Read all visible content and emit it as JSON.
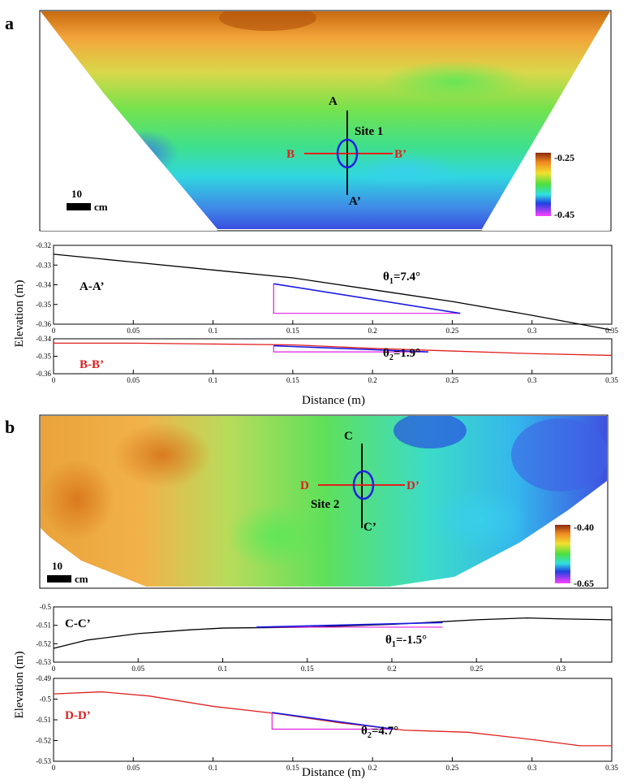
{
  "panel_a": {
    "label": "a",
    "map": {
      "scale_value": "10",
      "scale_unit": "cm",
      "colorbar_max": "-0.25",
      "colorbar_min": "-0.45",
      "site": "Site 1",
      "line1_start": "A",
      "line1_end": "A’",
      "line2_start": "B",
      "line2_end": "B’"
    },
    "profiles": [
      {
        "section": "A-A’",
        "section_color": "#000000",
        "angle_base": "θ",
        "angle_sub": "1",
        "angle_value": "=7.4°",
        "ylim": [
          -0.36,
          -0.32
        ],
        "yticks": [
          "-0.32",
          "-0.33",
          "-0.34",
          "-0.35",
          "-0.36"
        ],
        "xlim": [
          0,
          0.35
        ],
        "xticks": [
          "0",
          "0.05",
          "0.1",
          "0.15",
          "0.2",
          "0.25",
          "0.3",
          "0.35"
        ]
      },
      {
        "section": "B-B’",
        "section_color": "#e02020",
        "angle_base": "θ",
        "angle_sub": "2",
        "angle_value": "=1.9°",
        "ylim": [
          -0.36,
          -0.34
        ],
        "yticks": [
          "-0.34",
          "-0.35",
          "-0.36"
        ],
        "xlim": [
          0,
          0.35
        ],
        "xticks": [
          "0",
          "0.05",
          "0.1",
          "0.15",
          "0.2",
          "0.25",
          "0.3",
          "0.35"
        ]
      }
    ],
    "xlabel": "Distance (m)"
  },
  "panel_b": {
    "label": "b",
    "map": {
      "scale_value": "10",
      "scale_unit": "cm",
      "colorbar_max": "-0.40",
      "colorbar_min": "-0.65",
      "site": "Site 2",
      "line1_start": "C",
      "line1_end": "C’",
      "line2_start": "D",
      "line2_end": "D’"
    },
    "profiles": [
      {
        "section": "C-C’",
        "section_color": "#000000",
        "angle_base": "θ",
        "angle_sub": "1",
        "angle_value": "=-1.5°",
        "ylim": [
          -0.53,
          -0.5
        ],
        "yticks": [
          "-0.5",
          "-0.51",
          "-0.52",
          "-0.53"
        ],
        "xlim": [
          0,
          0.33
        ],
        "xticks": [
          "0",
          "0.05",
          "0.1",
          "0.15",
          "0.2",
          "0.25",
          "0.3"
        ]
      },
      {
        "section": "D-D’",
        "section_color": "#e02020",
        "angle_base": "θ",
        "angle_sub": "2",
        "angle_value": "=4.7°",
        "ylim": [
          -0.53,
          -0.49
        ],
        "yticks": [
          "-0.49",
          "-0.5",
          "-0.51",
          "-0.52",
          "-0.53"
        ],
        "xlim": [
          0,
          0.35
        ],
        "xticks": [
          "0",
          "0.05",
          "0.1",
          "0.15",
          "0.2",
          "0.25",
          "0.3",
          "0.35"
        ]
      }
    ],
    "xlabel": "Distance (m)"
  },
  "ylabel": "Elevation (m)",
  "colors": {
    "profile_black": "#000000",
    "profile_red": "#e02020",
    "segment_blue": "#1a1ae6",
    "triangle_magenta": "#e020e0",
    "site_circle": "#2020e0"
  },
  "chart_data": [
    {
      "type": "line",
      "x": [
        0,
        0.05,
        0.1,
        0.15,
        0.2,
        0.25,
        0.3,
        0.35
      ],
      "series": [
        {
          "values": [
            -0.3245,
            -0.3285,
            -0.3325,
            -0.3365,
            -0.3425,
            -0.3485,
            -0.3555,
            -0.363
          ]
        }
      ],
      "highlight": {
        "x": [
          0.138,
          0.255
        ],
        "y": [
          -0.3395,
          -0.3545
        ]
      },
      "xlabel": "Distance (m)",
      "ylabel": "Elevation (m)",
      "xlim": [
        0,
        0.35
      ],
      "ylim": [
        -0.36,
        -0.32
      ]
    },
    {
      "type": "line",
      "x": [
        0,
        0.05,
        0.1,
        0.15,
        0.2,
        0.25,
        0.3,
        0.35
      ],
      "series": [
        {
          "values": [
            -0.3425,
            -0.3425,
            -0.343,
            -0.3435,
            -0.3455,
            -0.347,
            -0.3485,
            -0.3495
          ]
        }
      ],
      "highlight": {
        "x": [
          0.138,
          0.235
        ],
        "y": [
          -0.344,
          -0.3475
        ]
      },
      "xlabel": "Distance (m)",
      "ylabel": "Elevation (m)",
      "xlim": [
        0,
        0.35
      ],
      "ylim": [
        -0.36,
        -0.34
      ]
    },
    {
      "type": "line",
      "x": [
        0,
        0.02,
        0.05,
        0.08,
        0.1,
        0.15,
        0.2,
        0.25,
        0.28,
        0.3,
        0.33
      ],
      "series": [
        {
          "values": [
            -0.5225,
            -0.518,
            -0.5145,
            -0.5125,
            -0.5115,
            -0.511,
            -0.5095,
            -0.507,
            -0.506,
            -0.5065,
            -0.507
          ]
        }
      ],
      "highlight": {
        "x": [
          0.12,
          0.23
        ],
        "y": [
          -0.511,
          -0.5085
        ]
      },
      "xlabel": "Distance (m)",
      "ylabel": "Elevation (m)",
      "xlim": [
        0,
        0.33
      ],
      "ylim": [
        -0.53,
        -0.5
      ]
    },
    {
      "type": "line",
      "x": [
        0,
        0.03,
        0.06,
        0.1,
        0.14,
        0.18,
        0.22,
        0.26,
        0.3,
        0.33,
        0.35
      ],
      "series": [
        {
          "values": [
            -0.4975,
            -0.4965,
            -0.4985,
            -0.5035,
            -0.507,
            -0.5115,
            -0.515,
            -0.516,
            -0.5195,
            -0.5225,
            -0.5225
          ]
        }
      ],
      "highlight": {
        "x": [
          0.137,
          0.213
        ],
        "y": [
          -0.5065,
          -0.5145
        ]
      },
      "xlabel": "Distance (m)",
      "ylabel": "Elevation (m)",
      "xlim": [
        0,
        0.35
      ],
      "ylim": [
        -0.53,
        -0.49
      ]
    }
  ]
}
